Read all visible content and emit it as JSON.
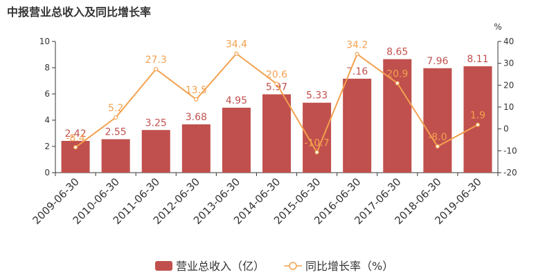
{
  "chart_data": {
    "type": "bar",
    "title": "中报营业总收入及同比增长率",
    "categories": [
      "2009-06-30",
      "2010-06-30",
      "2011-06-30",
      "2012-06-30",
      "2013-06-30",
      "2014-06-30",
      "2015-06-30",
      "2016-06-30",
      "2017-06-30",
      "2018-06-30",
      "2019-06-30"
    ],
    "series": [
      {
        "name": "营业总收入（亿）",
        "type": "bar",
        "axis": "left",
        "values": [
          2.42,
          2.55,
          3.25,
          3.68,
          4.95,
          5.97,
          5.33,
          7.16,
          8.65,
          7.96,
          8.11
        ],
        "labels": [
          "2.42",
          "2.55",
          "3.25",
          "3.68",
          "4.95",
          "5.97",
          "5.33",
          "7.16",
          "8.65",
          "7.96",
          "8.11"
        ]
      },
      {
        "name": "同比增长率（%）",
        "type": "line",
        "axis": "right",
        "values": [
          -8.4,
          5.2,
          27.3,
          13.5,
          34.4,
          20.6,
          -10.7,
          34.2,
          20.9,
          -8.0,
          1.9
        ],
        "labels": [
          "-8.4",
          "5.2",
          "27.3",
          "13.5",
          "34.4",
          "20.6",
          "-10.7",
          "34.2",
          "20.9",
          "-8.0",
          "1.9"
        ]
      }
    ],
    "y_left": {
      "min": 0,
      "max": 10,
      "ticks": [
        0,
        2,
        4,
        6,
        8,
        10
      ]
    },
    "y_right": {
      "min": -20,
      "max": 40,
      "ticks": [
        -20,
        -10,
        0,
        10,
        20,
        30,
        40
      ],
      "unit": "%"
    },
    "grid": false,
    "legend_position": "bottom-center",
    "colors": {
      "bar": "#c0504d",
      "bar_label": "#c0504d",
      "line": "#f3a14f",
      "line_label": "#f3a14f",
      "axis": "#333333",
      "title": "#333333"
    }
  }
}
